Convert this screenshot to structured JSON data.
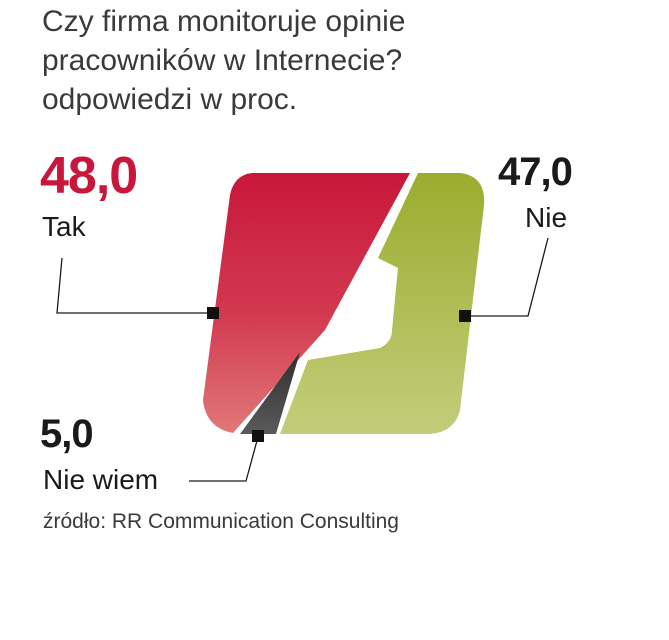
{
  "header": {
    "title_line1": "Czy firma monitoruje opinie",
    "title_line2": "pracowników w Internecie?",
    "subtitle": "odpowiedzi w proc."
  },
  "source": "źródło:  RR Communication Consulting",
  "colors": {
    "tak": "#c8173a",
    "nie": "#a3b537",
    "nie_wiem": "#3a3a3a"
  },
  "chart_data": {
    "type": "pie",
    "title": "Czy firma monitoruje opinie pracowników w Internecie?",
    "subtitle": "odpowiedzi w proc.",
    "unit": "%",
    "labels": [
      "Tak",
      "Nie",
      "Nie wiem"
    ],
    "values": [
      48.0,
      47.0,
      5.0
    ],
    "value_labels": [
      "48,0",
      "47,0",
      "5,0"
    ]
  }
}
